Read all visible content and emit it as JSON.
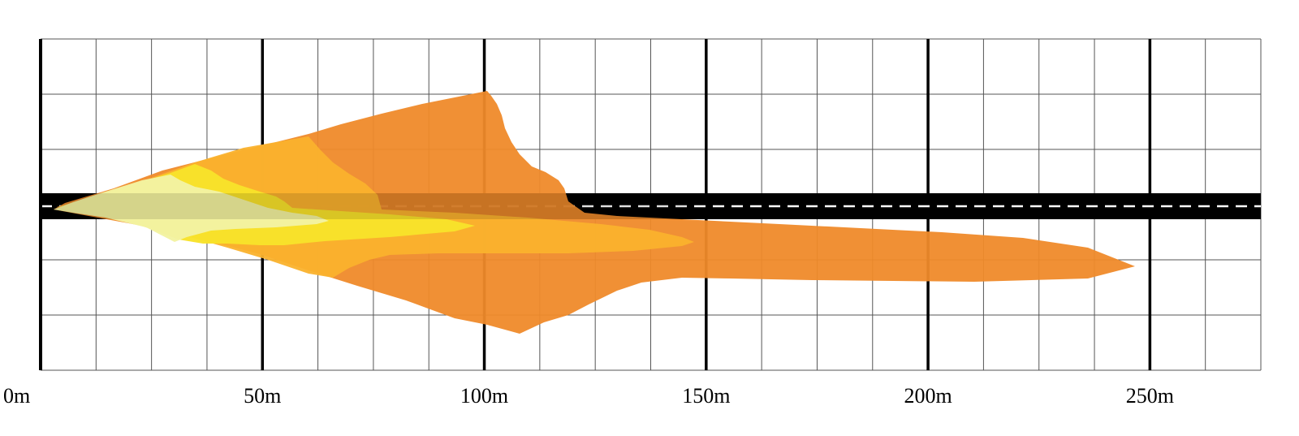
{
  "beam_diagram": {
    "x_axis": {
      "unit": "m",
      "range": [
        0,
        275
      ],
      "major_ticks": [
        0,
        50,
        100,
        150,
        200,
        250
      ],
      "tick_labels": [
        "0m",
        "50m",
        "100m",
        "150m",
        "200m",
        "250m"
      ],
      "minor_step": 12.5
    },
    "grid": true,
    "road": {
      "color": "#000000",
      "center_line": "dashed",
      "center_line_color": "#ffffff"
    },
    "illumination_zones": [
      {
        "name": "zone-1",
        "color": "#ef8a2a",
        "max_reach_m": 250
      },
      {
        "name": "zone-2",
        "color": "#fab22d",
        "max_reach_m": 150
      },
      {
        "name": "zone-3",
        "color": "#f8e22a",
        "max_reach_m": 100
      },
      {
        "name": "zone-4",
        "color": "#f3f3a2",
        "max_reach_m": 65
      }
    ]
  }
}
